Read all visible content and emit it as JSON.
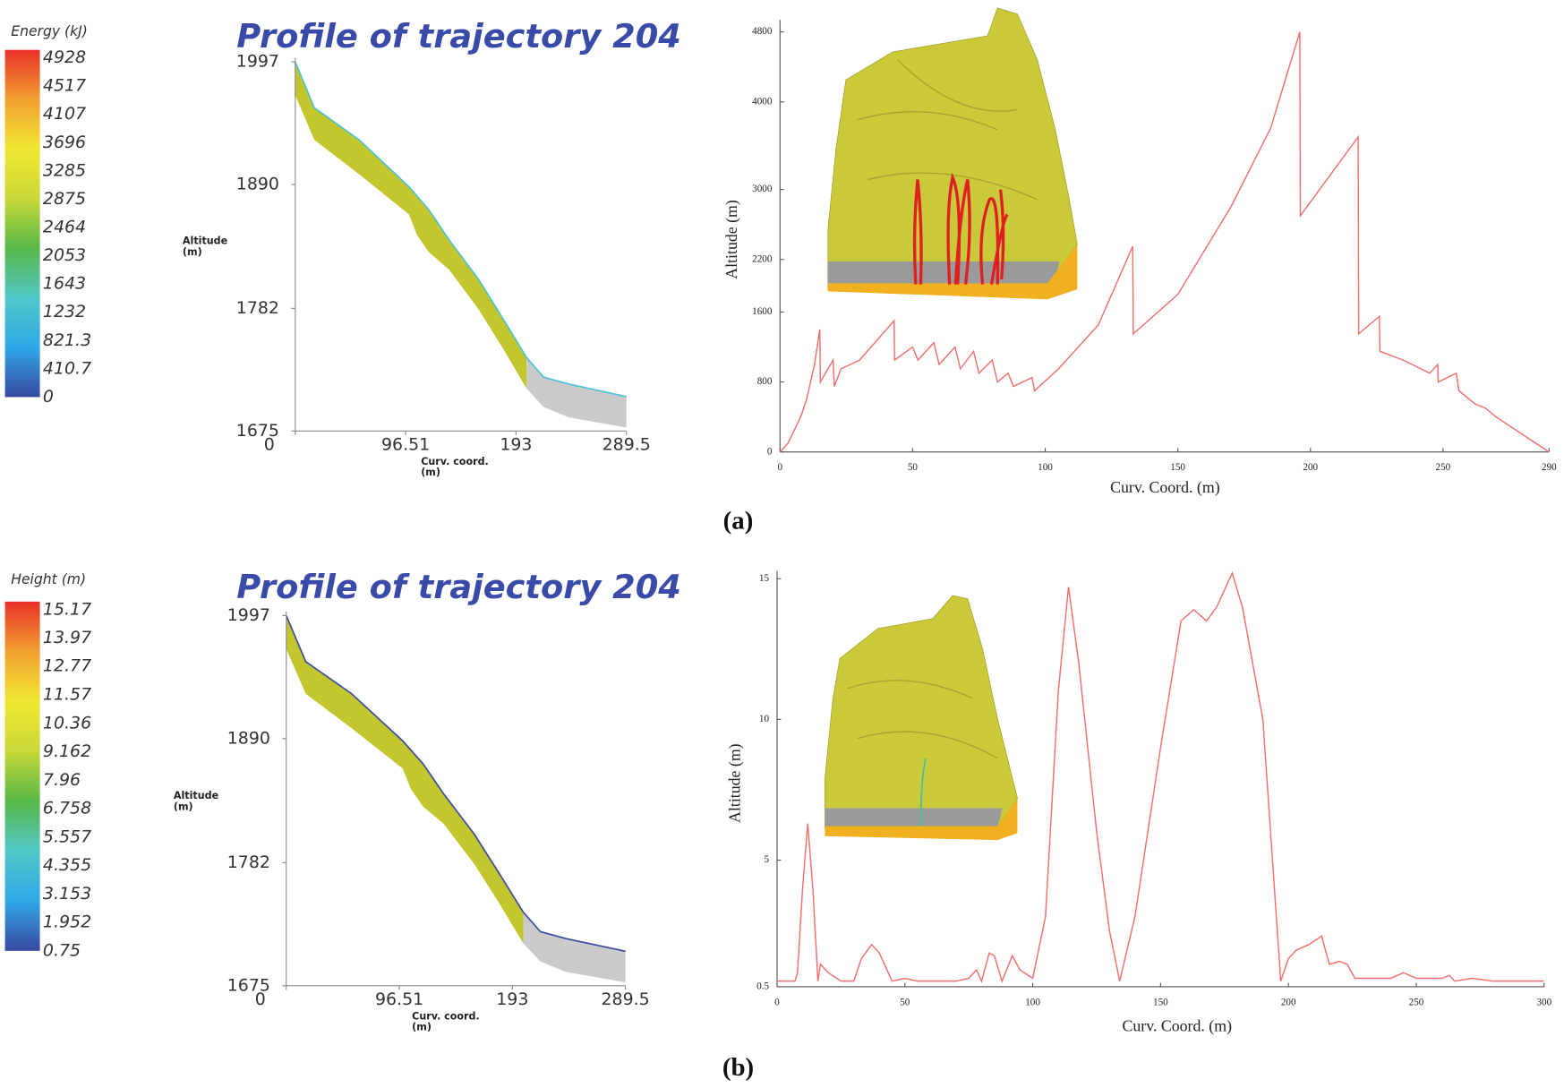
{
  "chart_data": [
    {
      "type": "profile",
      "title": "Profile of trajectory 204",
      "x_label": [
        "Curv. coord.",
        "(m)"
      ],
      "y_label": [
        "Altitude",
        "(m)"
      ],
      "xlim": [
        0,
        289.5
      ],
      "ylim": [
        1675,
        1997
      ],
      "xticks": [
        0,
        96.51,
        193,
        289.5
      ],
      "yticks": [
        1675,
        1782,
        1890,
        1997
      ],
      "line_color": "#4ac3d8",
      "bands": [
        {
          "color": "#c4c62e",
          "x": [
            0,
            16.6,
            55.8,
            99.4,
            106.4,
            116.8,
            134.3,
            160.4,
            182.2,
            202.3
          ],
          "upper": [
            1997,
            1957,
            1929,
            1888,
            1880,
            1868,
            1842,
            1807,
            1772,
            1739
          ],
          "lower": [
            1968,
            1929,
            1899,
            1864,
            1846,
            1831,
            1816,
            1781,
            1746,
            1712
          ]
        },
        {
          "color": "#cacaca",
          "x": [
            202.3,
            217.1,
            238.9,
            289.5
          ],
          "upper": [
            1739,
            1722,
            1716,
            1705
          ],
          "lower": [
            1712,
            1696,
            1687,
            1678
          ]
        }
      ],
      "colorbar": {
        "title": "Energy (kJ)",
        "ticks": [
          4928,
          4517,
          4107,
          3696,
          3285,
          2875,
          2464,
          2053,
          1643,
          1232,
          821.3,
          410.7,
          0
        ],
        "colors": [
          "#e8302a",
          "#f2a030",
          "#f0e832",
          "#c8d838",
          "#58b848",
          "#50c8c8",
          "#30a8e8",
          "#3848a0"
        ]
      }
    },
    {
      "type": "line",
      "x_label": "Curv. Coord. (m)",
      "y_label": "Altitude (m)",
      "panel_label": "(a)",
      "color": "#f07070",
      "xlim": [
        0,
        290
      ],
      "ylim": [
        0,
        4800
      ],
      "xticks": [
        0,
        50,
        100,
        150,
        200,
        250,
        290
      ],
      "yticks": [
        0,
        800,
        1600,
        2200,
        3000,
        4000,
        4800
      ],
      "x": [
        0,
        3,
        7,
        8,
        10,
        13,
        15,
        15.2,
        20,
        20.5,
        23,
        30,
        43,
        43.2,
        50,
        52,
        58,
        60,
        66,
        68,
        73,
        75,
        80,
        82,
        86,
        88,
        95,
        96,
        105,
        120,
        133,
        133.2,
        150,
        170,
        185,
        196,
        196.2,
        218,
        218.2,
        226,
        226.2,
        235,
        245,
        248,
        248.2,
        255,
        256,
        262,
        266,
        270,
        290
      ],
      "values": [
        0,
        100,
        350,
        420,
        600,
        1000,
        1400,
        800,
        1050,
        750,
        950,
        1050,
        1500,
        1050,
        1200,
        1050,
        1250,
        1000,
        1200,
        950,
        1150,
        900,
        1050,
        800,
        900,
        750,
        850,
        700,
        950,
        1450,
        2350,
        1350,
        1800,
        2800,
        3700,
        4800,
        2700,
        3600,
        1350,
        1550,
        1150,
        1050,
        900,
        1000,
        800,
        900,
        700,
        550,
        500,
        400,
        0
      ]
    },
    {
      "type": "profile",
      "title": "Profile of trajectory 204",
      "x_label": [
        "Curv. coord.",
        "(m)"
      ],
      "y_label": [
        "Altitude",
        "(m)"
      ],
      "xlim": [
        0,
        289.5
      ],
      "ylim": [
        1675,
        1997
      ],
      "xticks": [
        0,
        96.51,
        193,
        289.5
      ],
      "yticks": [
        1675,
        1782,
        1890,
        1997
      ],
      "line_color": "#3a4aa0",
      "bands": [
        {
          "color": "#c4c62e",
          "x": [
            0,
            16.6,
            55.8,
            99.4,
            106.4,
            116.8,
            134.3,
            160.4,
            182.2,
            202.3
          ],
          "upper": [
            1997,
            1957,
            1929,
            1888,
            1880,
            1868,
            1842,
            1807,
            1772,
            1739
          ],
          "lower": [
            1968,
            1929,
            1899,
            1864,
            1846,
            1831,
            1816,
            1781,
            1746,
            1712
          ]
        },
        {
          "color": "#cacaca",
          "x": [
            202.3,
            217.1,
            238.9,
            289.5
          ],
          "upper": [
            1739,
            1722,
            1716,
            1705
          ],
          "lower": [
            1712,
            1696,
            1687,
            1678
          ]
        }
      ],
      "colorbar": {
        "title": "Height (m)",
        "ticks": [
          15.17,
          13.97,
          12.77,
          11.57,
          10.36,
          9.162,
          7.96,
          6.758,
          5.557,
          4.355,
          3.153,
          1.952,
          0.75
        ],
        "colors": [
          "#e8302a",
          "#f2a030",
          "#f0e832",
          "#c8d838",
          "#58b848",
          "#50c8c8",
          "#30a8e8",
          "#3848a0"
        ]
      }
    },
    {
      "type": "line",
      "x_label": "Curv. Coord. (m)",
      "y_label": "Altitude (m)",
      "panel_label": "(b)",
      "color": "#f07070",
      "xlim": [
        0,
        300
      ],
      "ylim": [
        0.5,
        15
      ],
      "xticks": [
        0,
        50,
        100,
        150,
        200,
        250,
        300
      ],
      "yticks": [
        0.5,
        5,
        10,
        15
      ],
      "x": [
        0,
        7,
        8,
        10,
        12,
        14,
        16,
        17,
        20,
        25,
        30,
        33,
        37,
        40,
        45,
        50,
        55,
        60,
        70,
        75,
        78,
        80,
        83,
        85,
        88,
        92,
        95,
        100,
        105,
        110,
        114,
        118,
        125,
        130,
        134,
        140,
        150,
        158,
        163,
        168,
        172,
        178,
        182,
        190,
        197,
        200,
        203,
        208,
        213,
        216,
        220,
        223,
        226,
        240,
        245,
        250,
        260,
        263,
        265,
        272,
        280,
        300
      ],
      "values": [
        0.7,
        0.7,
        1,
        4,
        6.3,
        4,
        0.7,
        1.3,
        1,
        0.7,
        0.7,
        1.5,
        2,
        1.7,
        0.7,
        0.8,
        0.7,
        0.7,
        0.7,
        0.8,
        1.1,
        0.7,
        1.7,
        1.6,
        0.7,
        1.6,
        1.1,
        0.8,
        3,
        11,
        14.7,
        12,
        6,
        2.5,
        0.7,
        3,
        9,
        13.5,
        13.9,
        13.5,
        14,
        15.2,
        14,
        10,
        0.7,
        1.5,
        1.8,
        2,
        2.3,
        1.3,
        1.4,
        1.3,
        0.8,
        0.8,
        1,
        0.8,
        0.8,
        0.9,
        0.7,
        0.8,
        0.7,
        0.7
      ]
    }
  ]
}
